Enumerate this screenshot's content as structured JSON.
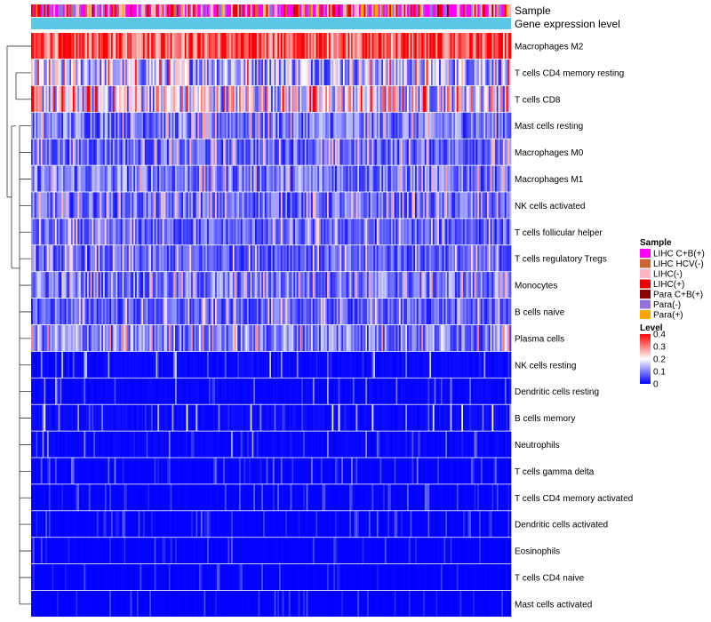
{
  "chart_data": {
    "type": "heatmap",
    "annotations": {
      "sample_label": "Sample",
      "gene_label": "Gene expression level"
    },
    "rows": [
      {
        "name": "Macrophages M2",
        "level": 0.34
      },
      {
        "name": "T cells CD4 memory resting",
        "level": 0.14
      },
      {
        "name": "T cells CD8",
        "level": 0.18
      },
      {
        "name": "Mast cells resting",
        "level": 0.09
      },
      {
        "name": "Macrophages M0",
        "level": 0.08
      },
      {
        "name": "Macrophages M1",
        "level": 0.09
      },
      {
        "name": "NK cells activated",
        "level": 0.08
      },
      {
        "name": "T cells follicular helper",
        "level": 0.07
      },
      {
        "name": "T cells regulatory  Tregs",
        "level": 0.07
      },
      {
        "name": "Monocytes",
        "level": 0.09
      },
      {
        "name": "B cells naive",
        "level": 0.07
      },
      {
        "name": "Plasma cells",
        "level": 0.1
      },
      {
        "name": "NK cells resting",
        "level": 0.04
      },
      {
        "name": "Dendritic cells resting",
        "level": 0.03
      },
      {
        "name": "B cells memory",
        "level": 0.05
      },
      {
        "name": "Neutrophils",
        "level": 0.03
      },
      {
        "name": "T cells gamma delta",
        "level": 0.02
      },
      {
        "name": "T cells CD4 memory activated",
        "level": 0.015
      },
      {
        "name": "Dendritic cells activated",
        "level": 0.015
      },
      {
        "name": "Eosinophils",
        "level": 0.012
      },
      {
        "name": "T cells CD4 naive",
        "level": 0.012
      },
      {
        "name": "Mast cells activated",
        "level": 0.01
      }
    ],
    "legend": {
      "sample": {
        "title": "Sample",
        "items": [
          {
            "label": "LIHC C+B(+)",
            "color": "#ff00ff"
          },
          {
            "label": "LIHC HCV(-)",
            "color": "#cc6633"
          },
          {
            "label": "LIHC(-)",
            "color": "#ffb6c1"
          },
          {
            "label": "LIHC(+)",
            "color": "#ee0000"
          },
          {
            "label": "Para C+B(+)",
            "color": "#8b0000"
          },
          {
            "label": "Para(-)",
            "color": "#9370db"
          },
          {
            "label": "Para(+)",
            "color": "#ffa500"
          }
        ]
      },
      "level": {
        "title": "Level",
        "ticks": [
          "0.4",
          "0.3",
          "0.2",
          "0.1",
          "0"
        ],
        "tick_values": [
          0.4,
          0.3,
          0.2,
          0.1,
          0
        ],
        "colors": [
          "#0000ff",
          "#ffffff",
          "#ff0000"
        ],
        "range": [
          0,
          0.4
        ]
      }
    },
    "gene_bar_color": "#5bc8e8"
  }
}
